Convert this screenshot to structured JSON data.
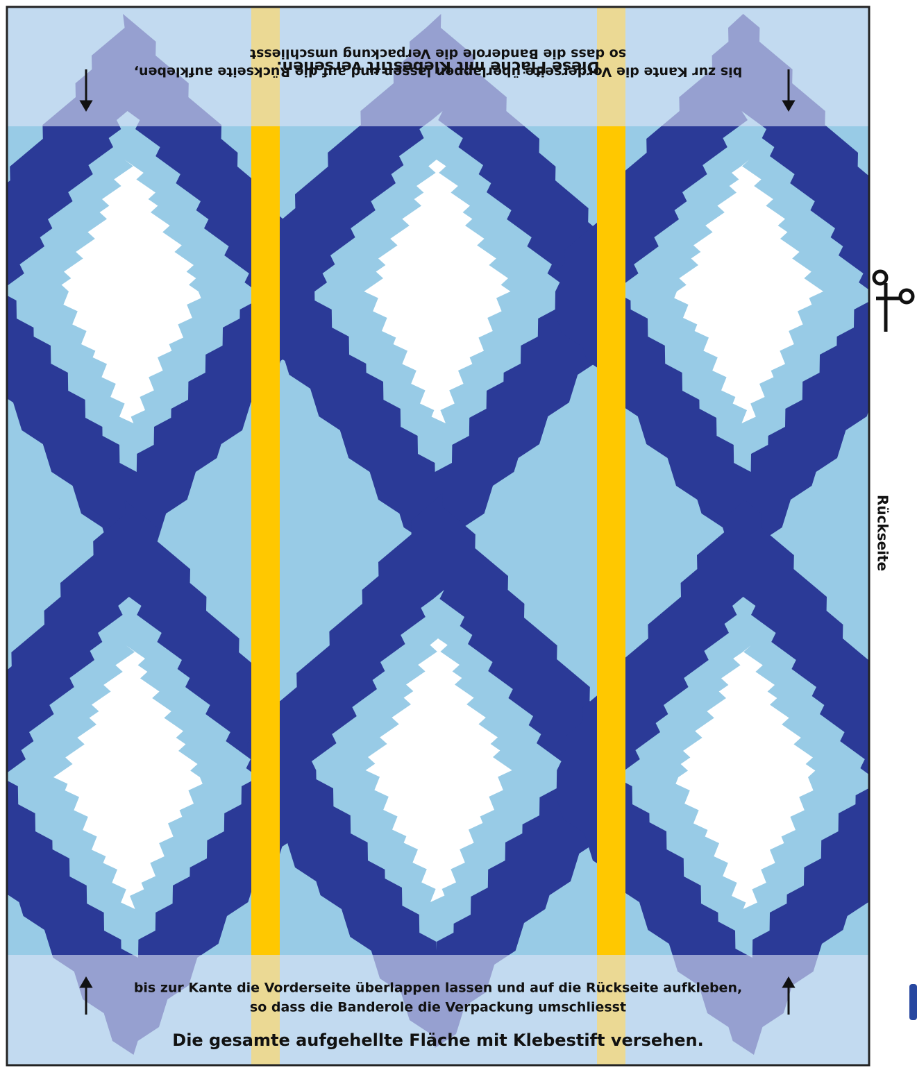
{
  "top_flap": {
    "glue_note": "Diese Fläche mit Klebestift versehen.",
    "line1": "bis zur Kante die Vorderseite überlappen lassen und auf die Rückseite aufkleben,",
    "line2": "so dass die Banderole die Verpackung umschliesst"
  },
  "bottom_flap": {
    "line1": "bis zur Kante die Vorderseite überlappen lassen und auf die Rückseite aufkleben,",
    "line2": "so dass die Banderole die Verpackung umschliesst",
    "glue_note": "Die gesamte aufgehellte Fläche mit Klebestift versehen."
  },
  "side_label": "Rückseite"
}
